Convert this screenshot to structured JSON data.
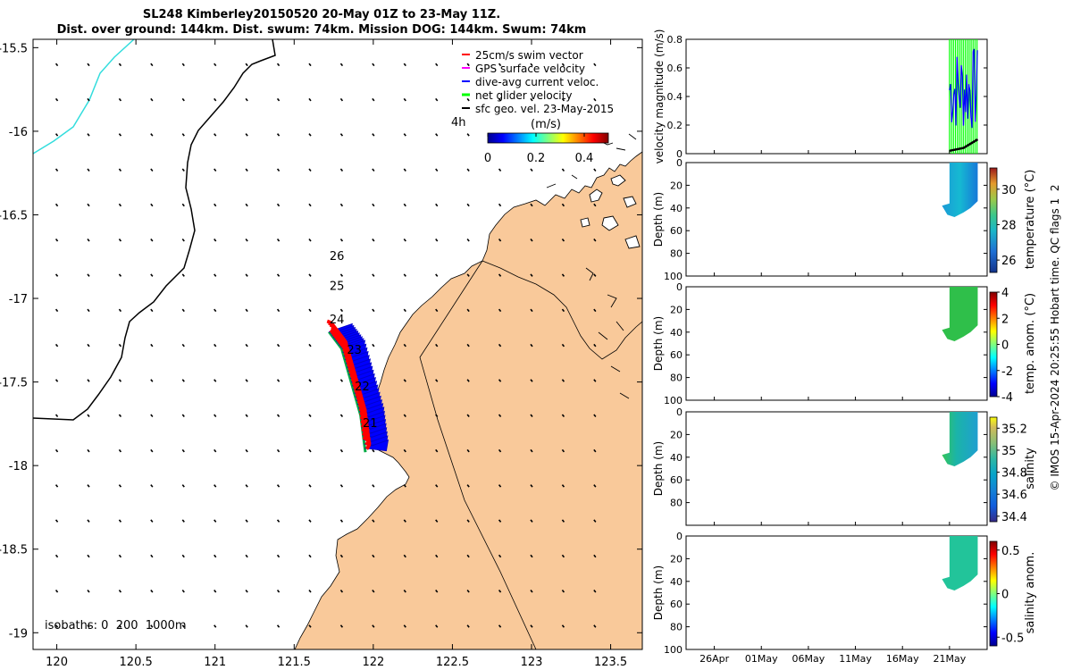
{
  "title": {
    "line1": "SL248 Kimberley20150520 20-May 01Z to 23-May 11Z.",
    "line2": "Dist. over ground: 144km. Dist. swum: 74km. Mission DOG: 144km. Swum: 74km"
  },
  "colors": {
    "land": "#f9c99a",
    "swim_vector": "#ff0000",
    "gps_velocity": "#ff00ff",
    "dive_avg_current": "#0000ff",
    "net_glider_velocity": "#00ff00",
    "sfc_geo_vel": "#000000",
    "isobath": "#000000",
    "coastline_nw": "#33dddd"
  },
  "chart_data": [
    {
      "type": "scatter",
      "id": "map",
      "x_ticks": [
        "120",
        "120.5",
        "121",
        "121.5",
        "122",
        "122.5",
        "123",
        "123.5"
      ],
      "y_ticks": [
        "-15.5",
        "-16",
        "-16.5",
        "-17",
        "-17.5",
        "-18",
        "-18.5",
        "-19"
      ],
      "xlim": [
        119.85,
        123.7
      ],
      "ylim": [
        -19.1,
        -15.45
      ],
      "legend": [
        {
          "label": "25cm/s swim vector",
          "color": "#ff0000"
        },
        {
          "label": "GPS surface velocity",
          "color": "#ff00ff"
        },
        {
          "label": "dive-avg current veloc.",
          "color": "#0000ff"
        },
        {
          "label": "net glider velocity",
          "color": "#00ff00"
        },
        {
          "label": "sfc geo. vel. 23-May-2015",
          "color": "#000000"
        }
      ],
      "scale_label": "4h",
      "colorbar": {
        "label": "(m/s)",
        "ticks": [
          "0",
          "0.2",
          "0.4"
        ],
        "range": [
          0,
          0.5
        ]
      },
      "day_labels": [
        {
          "text": "26",
          "lon": 121.77,
          "lat": -16.77
        },
        {
          "text": "25",
          "lon": 121.77,
          "lat": -16.95
        },
        {
          "text": "24",
          "lon": 121.77,
          "lat": -17.15
        },
        {
          "text": "23",
          "lon": 121.88,
          "lat": -17.33
        },
        {
          "text": "22",
          "lon": 121.93,
          "lat": -17.55
        },
        {
          "text": "21",
          "lon": 121.98,
          "lat": -17.77
        }
      ],
      "track": [
        [
          121.72,
          -17.2
        ],
        [
          121.8,
          -17.3
        ],
        [
          121.86,
          -17.5
        ],
        [
          121.92,
          -17.7
        ],
        [
          121.95,
          -17.92
        ]
      ],
      "isobath_label": "isobaths: 0  200  1000m"
    },
    {
      "type": "line",
      "id": "velocity",
      "ylabel": "velocity magnitude (m/s)",
      "y_ticks": [
        "0",
        "0.2",
        "0.4",
        "0.6",
        "0.8"
      ],
      "ylim": [
        0,
        0.8
      ],
      "x_ticks": [
        "26Apr",
        "01May",
        "06May",
        "11May",
        "16May",
        "21May"
      ],
      "xlim": [
        "23Apr",
        "25May"
      ],
      "series": [
        {
          "name": "net glider velocity",
          "color": "#00ff00",
          "values_range": [
            0,
            0.8
          ]
        },
        {
          "name": "dive-avg current veloc.",
          "color": "#0000ff",
          "values_range": [
            0.15,
            0.75
          ]
        },
        {
          "name": "GPS surface velocity",
          "color": "#000000",
          "values_range": [
            0.02,
            0.1
          ]
        }
      ]
    },
    {
      "type": "heatmap",
      "id": "temperature",
      "ylabel": "Depth (m)",
      "y_ticks": [
        "0",
        "20",
        "40",
        "60",
        "80",
        "100"
      ],
      "ylim": [
        0,
        100
      ],
      "colorbar_label": "temperature (°C)",
      "colorbar_ticks": [
        "26",
        "28",
        "30"
      ],
      "colorbar_range": [
        25.3,
        31.2
      ]
    },
    {
      "type": "heatmap",
      "id": "temp-anom",
      "ylabel": "Depth (m)",
      "y_ticks": [
        "0",
        "20",
        "40",
        "60",
        "80",
        "100"
      ],
      "ylim": [
        0,
        100
      ],
      "colorbar_label": "temp. anom. (°C)",
      "colorbar_ticks": [
        "-4",
        "-2",
        "0",
        "2",
        "4"
      ],
      "colorbar_range": [
        -4,
        4
      ]
    },
    {
      "type": "heatmap",
      "id": "salinity",
      "ylabel": "Depth (m)",
      "y_ticks": [
        "0",
        "20",
        "40",
        "60",
        "80"
      ],
      "ylim": [
        0,
        100
      ],
      "colorbar_label": "salinity",
      "colorbar_ticks": [
        "34.4",
        "34.6",
        "34.8",
        "35",
        "35.2"
      ],
      "colorbar_range": [
        34.35,
        35.3
      ]
    },
    {
      "type": "heatmap",
      "id": "salinity-anom",
      "ylabel": "Depth (m)",
      "y_ticks": [
        "0",
        "20",
        "40",
        "60",
        "80",
        "100"
      ],
      "ylim": [
        0,
        100
      ],
      "colorbar_label": "salinity anom.",
      "colorbar_ticks": [
        "-0.5",
        "0",
        "0.5"
      ],
      "colorbar_range": [
        -0.6,
        0.6
      ]
    }
  ],
  "footer": "© IMOS 15-Apr-2024 20:25:55 Hobart time. QC flags 1  2"
}
